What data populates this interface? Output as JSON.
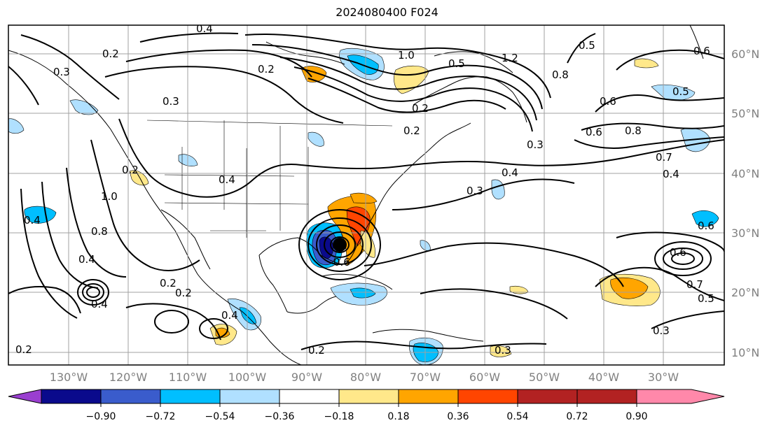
{
  "title": "2024080400 F024",
  "lon_labels": [
    "130°W",
    "120°W",
    "110°W",
    "100°W",
    "90°W",
    "80°W",
    "70°W",
    "60°W",
    "50°W",
    "40°W",
    "30°W"
  ],
  "lat_labels": [
    "60°N",
    "50°N",
    "40°N",
    "30°N",
    "20°N",
    "10°N"
  ],
  "colorbar": {
    "colors": [
      "#9a3fd0",
      "#0a0a8c",
      "#3a5ccc",
      "#00bfff",
      "#b0e0ff",
      "#ffffff",
      "#ffe88a",
      "#ffa500",
      "#ff4500",
      "#b22222",
      "#ff88aa"
    ],
    "labels": [
      "−0.90",
      "−0.72",
      "−0.54",
      "−0.36",
      "−0.18",
      "0.18",
      "0.36",
      "0.54",
      "0.72",
      "0.90"
    ]
  },
  "contour_labels": [
    "0.4",
    "0.2",
    "0.2",
    "0.3",
    "0.3",
    "1.0",
    "1.2",
    "0.5",
    "0.8",
    "0.2",
    "0.6",
    "0.6",
    "0.8",
    "0.3",
    "0.7",
    "0.4",
    "0.5",
    "0.5",
    "0.2",
    "0.2",
    "0.2",
    "0.2",
    "0.6",
    "0.7",
    "0.5",
    "0.3",
    "0.3",
    "0.6",
    "0.2",
    "0.4",
    "0.4",
    "0.4",
    "0.4",
    "0.3",
    "0.8",
    "1.0",
    "0.4",
    "0.4",
    "0.2",
    "0.6",
    "0.6"
  ]
}
